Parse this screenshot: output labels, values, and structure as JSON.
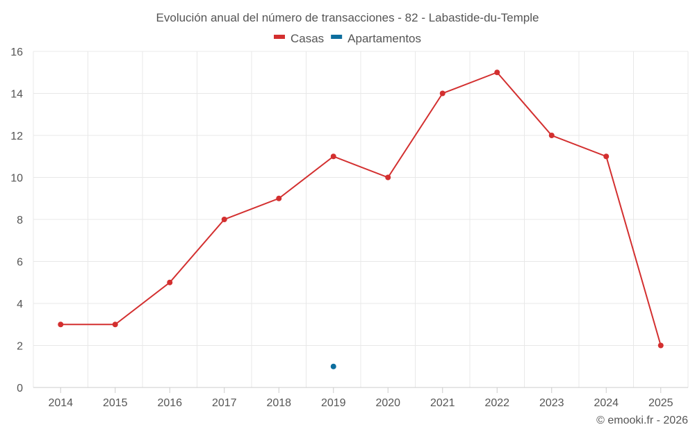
{
  "chart_data": {
    "type": "line",
    "title": "Evolución anual del número de transacciones - 82 - Labastide-du-Temple",
    "xlabel": "",
    "ylabel": "",
    "categories": [
      "2014",
      "2015",
      "2016",
      "2017",
      "2018",
      "2019",
      "2020",
      "2021",
      "2022",
      "2023",
      "2024",
      "2025"
    ],
    "ylim": [
      0,
      16
    ],
    "yticks": [
      0,
      2,
      4,
      6,
      8,
      10,
      12,
      14,
      16
    ],
    "grid": true,
    "legend_position": "top-center",
    "series": [
      {
        "name": "Casas",
        "color": "#d32f2f",
        "values": [
          3,
          3,
          5,
          8,
          9,
          11,
          10,
          14,
          15,
          12,
          11,
          2
        ]
      },
      {
        "name": "Apartamentos",
        "color": "#0d6e9e",
        "values": [
          null,
          null,
          null,
          null,
          null,
          1,
          null,
          null,
          null,
          null,
          null,
          null
        ]
      }
    ]
  },
  "credit": "© emooki.fr - 2026"
}
